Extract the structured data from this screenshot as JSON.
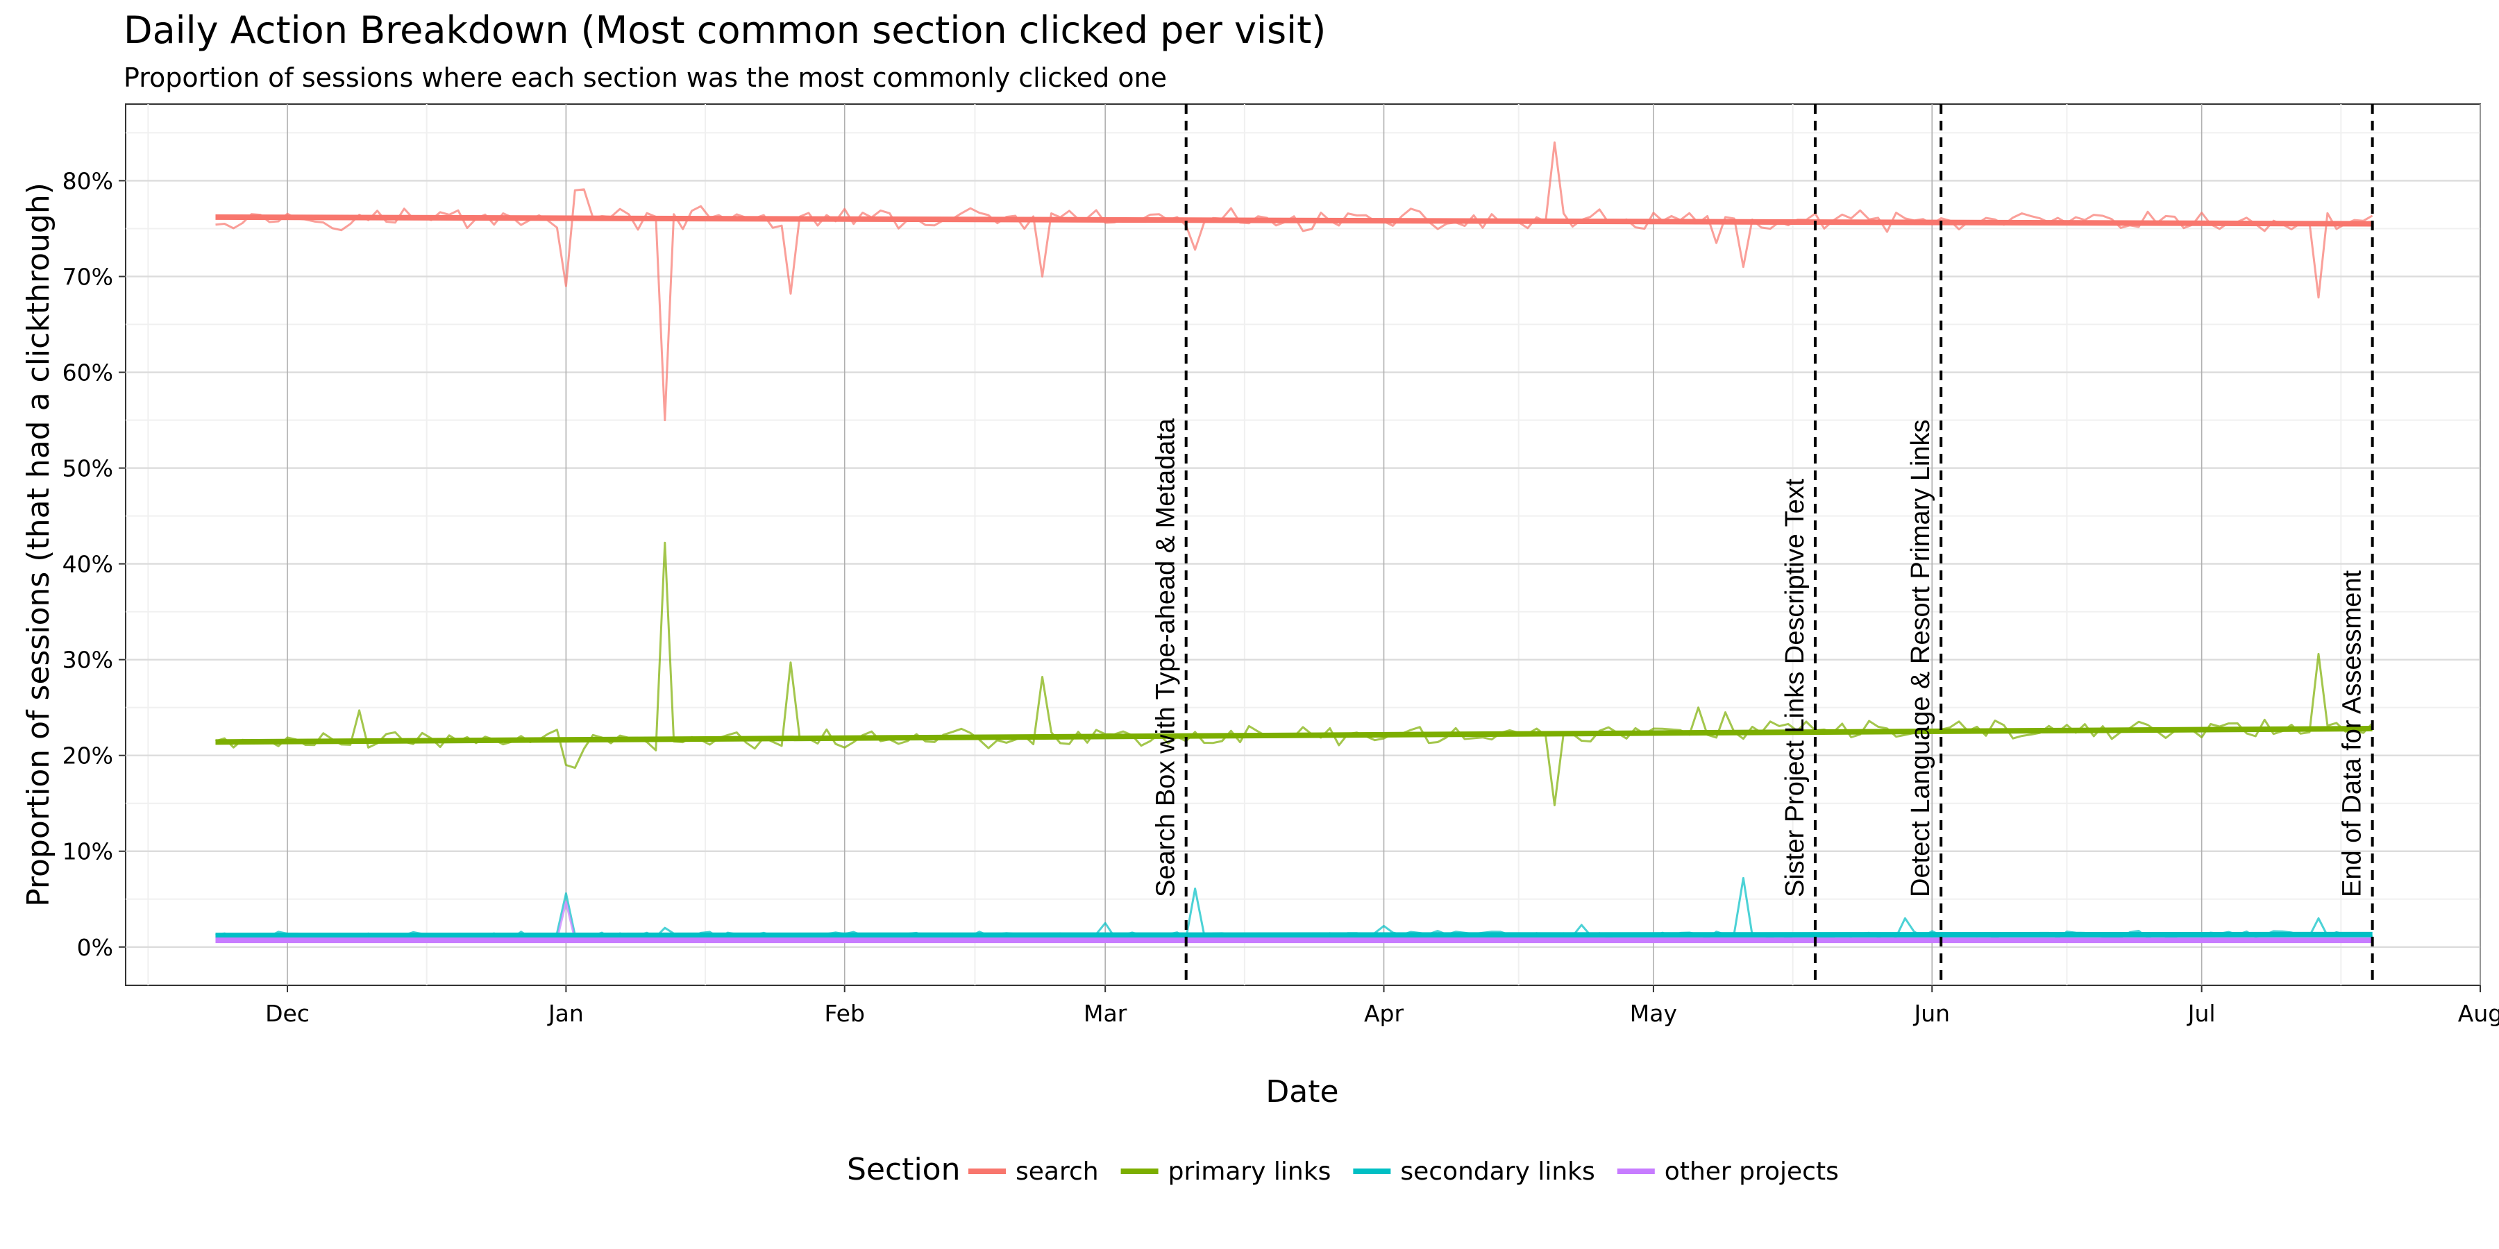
{
  "chart_data": {
    "type": "line",
    "title": "Daily Action Breakdown (Most common section clicked per visit)",
    "subtitle": "Proportion of sessions where each section was the most commonly clicked one",
    "xlabel": "Date",
    "ylabel": "Proportion of sessions (that had a clickthrough)",
    "x_start": "2015-11-23",
    "x_end": "2016-07-20",
    "xlim": [
      "2015-11-13",
      "2016-08-01"
    ],
    "ylim": [
      -0.04,
      0.88
    ],
    "x_ticks": [
      {
        "date": "2015-12-01",
        "label": "Dec"
      },
      {
        "date": "2016-01-01",
        "label": "Jan"
      },
      {
        "date": "2016-02-01",
        "label": "Feb"
      },
      {
        "date": "2016-03-01",
        "label": "Mar"
      },
      {
        "date": "2016-04-01",
        "label": "Apr"
      },
      {
        "date": "2016-05-01",
        "label": "May"
      },
      {
        "date": "2016-06-01",
        "label": "Jun"
      },
      {
        "date": "2016-07-01",
        "label": "Jul"
      },
      {
        "date": "2016-08-01",
        "label": "Aug"
      }
    ],
    "y_ticks": [
      {
        "value": 0,
        "label": "0%"
      },
      {
        "value": 0.1,
        "label": "10%"
      },
      {
        "value": 0.2,
        "label": "20%"
      },
      {
        "value": 0.3,
        "label": "30%"
      },
      {
        "value": 0.4,
        "label": "40%"
      },
      {
        "value": 0.5,
        "label": "50%"
      },
      {
        "value": 0.6,
        "label": "60%"
      },
      {
        "value": 0.7,
        "label": "70%"
      },
      {
        "value": 0.8,
        "label": "80%"
      }
    ],
    "grid": true,
    "legend": {
      "title": "Section",
      "position": "bottom"
    },
    "series": [
      {
        "name": "search",
        "color": "#F8766D",
        "trend": [
          0.762,
          0.755
        ],
        "baseline": 0.76,
        "noise": 0.009,
        "spikes": [
          {
            "date": "2016-01-01",
            "value": 0.69
          },
          {
            "date": "2016-01-02",
            "value": 0.79
          },
          {
            "date": "2016-01-03",
            "value": 0.791
          },
          {
            "date": "2016-01-12",
            "value": 0.55
          },
          {
            "date": "2016-01-26",
            "value": 0.682
          },
          {
            "date": "2016-02-23",
            "value": 0.7
          },
          {
            "date": "2016-03-11",
            "value": 0.728
          },
          {
            "date": "2016-04-20",
            "value": 0.84
          },
          {
            "date": "2016-05-08",
            "value": 0.735
          },
          {
            "date": "2016-05-11",
            "value": 0.71
          },
          {
            "date": "2016-07-14",
            "value": 0.678
          }
        ]
      },
      {
        "name": "primary links",
        "color": "#7CAE00",
        "trend": [
          0.214,
          0.228
        ],
        "baseline": 0.215,
        "noise": 0.008,
        "spikes": [
          {
            "date": "2015-12-09",
            "value": 0.247
          },
          {
            "date": "2016-01-01",
            "value": 0.19
          },
          {
            "date": "2016-01-02",
            "value": 0.187
          },
          {
            "date": "2016-01-12",
            "value": 0.422
          },
          {
            "date": "2016-01-26",
            "value": 0.297
          },
          {
            "date": "2016-02-23",
            "value": 0.282
          },
          {
            "date": "2016-04-20",
            "value": 0.148
          },
          {
            "date": "2016-05-06",
            "value": 0.25
          },
          {
            "date": "2016-05-09",
            "value": 0.245
          },
          {
            "date": "2016-07-14",
            "value": 0.306
          }
        ]
      },
      {
        "name": "secondary links",
        "color": "#00BFC4",
        "trend": [
          0.012,
          0.013
        ],
        "baseline": 0.012,
        "noise": 0.003,
        "spikes": [
          {
            "date": "2016-01-01",
            "value": 0.056
          },
          {
            "date": "2016-01-12",
            "value": 0.02
          },
          {
            "date": "2016-03-01",
            "value": 0.025
          },
          {
            "date": "2016-03-11",
            "value": 0.061
          },
          {
            "date": "2016-04-01",
            "value": 0.022
          },
          {
            "date": "2016-04-23",
            "value": 0.023
          },
          {
            "date": "2016-05-11",
            "value": 0.072
          },
          {
            "date": "2016-05-29",
            "value": 0.03
          },
          {
            "date": "2016-07-14",
            "value": 0.03
          }
        ]
      },
      {
        "name": "other projects",
        "color": "#C77CFF",
        "trend": [
          0.007,
          0.007
        ],
        "baseline": 0.007,
        "noise": 0.001,
        "spikes": [
          {
            "date": "2016-01-01",
            "value": 0.047
          }
        ]
      }
    ],
    "annotations": [
      {
        "date": "2016-03-10",
        "label": "Search Box with Type-ahead & Metadata"
      },
      {
        "date": "2016-05-19",
        "label": "Sister Project Links Descriptive Text"
      },
      {
        "date": "2016-06-02",
        "label": "Detect Language & Resort Primary Links"
      },
      {
        "date": "2016-07-20",
        "label": "End of Data for Assessment"
      }
    ]
  }
}
